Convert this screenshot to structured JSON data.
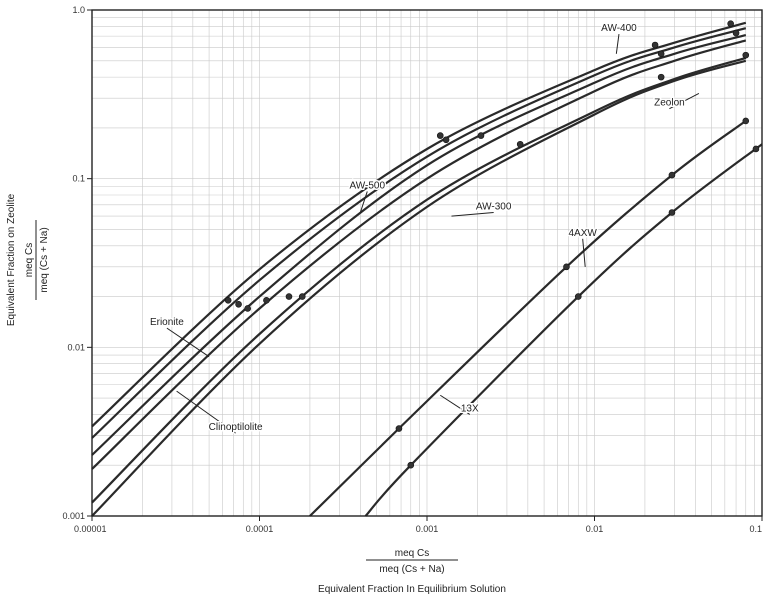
{
  "chart_data": {
    "type": "line",
    "x_scale": "log",
    "y_scale": "log",
    "xlim": [
      1e-05,
      0.1
    ],
    "ylim": [
      0.001,
      1.0
    ],
    "grid": true,
    "x_ticks": [
      "0.00001",
      "0.0001",
      "0.001",
      "0.01",
      "0.1"
    ],
    "y_ticks": [
      "0.001",
      "0.01",
      "0.1",
      "1.0"
    ],
    "xlabel": {
      "numerator": "meq Cs",
      "denominator": "meq (Cs + Na)",
      "caption": "Equivalent Fraction In Equilibrium Solution"
    },
    "ylabel": {
      "caption": "Equivalent Fraction on Zeolite",
      "numerator": "meq Cs",
      "denominator": "meq (Cs + Na)"
    },
    "series": [
      {
        "name": "AW-400",
        "x": [
          1e-05,
          0.0001,
          0.001,
          0.01,
          0.03,
          0.08
        ],
        "y": [
          0.0034,
          0.029,
          0.15,
          0.44,
          0.64,
          0.84
        ]
      },
      {
        "name": "AW-500",
        "x": [
          1e-05,
          0.0001,
          0.001,
          0.01,
          0.03,
          0.08
        ],
        "y": [
          0.0029,
          0.025,
          0.135,
          0.41,
          0.6,
          0.78
        ]
      },
      {
        "name": "Erionite",
        "x": [
          1e-05,
          0.0001,
          0.001,
          0.01,
          0.03,
          0.08
        ],
        "y": [
          0.0023,
          0.02,
          0.12,
          0.37,
          0.55,
          0.71
        ]
      },
      {
        "name": "Zeolon",
        "x": [
          1e-05,
          0.0001,
          0.001,
          0.01,
          0.03,
          0.08
        ],
        "y": [
          0.0019,
          0.017,
          0.1,
          0.33,
          0.5,
          0.66
        ]
      },
      {
        "name": "AW-300",
        "x": [
          1e-05,
          0.0001,
          0.001,
          0.01,
          0.03,
          0.08
        ],
        "y": [
          0.0012,
          0.012,
          0.075,
          0.25,
          0.39,
          0.52
        ]
      },
      {
        "name": "Clinoptilolite",
        "x": [
          1e-05,
          0.0001,
          0.001,
          0.01,
          0.03,
          0.08
        ],
        "y": [
          0.001,
          0.0105,
          0.068,
          0.24,
          0.38,
          0.5
        ]
      },
      {
        "name": "4AXW",
        "x": [
          0.0002,
          0.00068,
          0.0068,
          0.029,
          0.08
        ],
        "y": [
          0.001,
          0.0033,
          0.03,
          0.105,
          0.22
        ]
      },
      {
        "name": "13X",
        "x": [
          0.00043,
          0.0008,
          0.008,
          0.029,
          0.1
        ],
        "y": [
          0.001,
          0.002,
          0.02,
          0.063,
          0.16
        ]
      }
    ],
    "markers": [
      {
        "x": 6.5e-05,
        "y": 0.019
      },
      {
        "x": 7.5e-05,
        "y": 0.018
      },
      {
        "x": 8.5e-05,
        "y": 0.017
      },
      {
        "x": 0.00011,
        "y": 0.019
      },
      {
        "x": 0.00015,
        "y": 0.02
      },
      {
        "x": 0.00018,
        "y": 0.02
      },
      {
        "x": 0.0012,
        "y": 0.18
      },
      {
        "x": 0.0013,
        "y": 0.17
      },
      {
        "x": 0.0021,
        "y": 0.18
      },
      {
        "x": 0.0036,
        "y": 0.16
      },
      {
        "x": 0.023,
        "y": 0.62
      },
      {
        "x": 0.025,
        "y": 0.55
      },
      {
        "x": 0.025,
        "y": 0.4
      },
      {
        "x": 0.065,
        "y": 0.83
      },
      {
        "x": 0.07,
        "y": 0.73
      },
      {
        "x": 0.08,
        "y": 0.54
      },
      {
        "x": 0.00068,
        "y": 0.0033
      },
      {
        "x": 0.0068,
        "y": 0.03
      },
      {
        "x": 0.029,
        "y": 0.105
      },
      {
        "x": 0.08,
        "y": 0.22
      },
      {
        "x": 0.0008,
        "y": 0.002
      },
      {
        "x": 0.008,
        "y": 0.02
      },
      {
        "x": 0.029,
        "y": 0.063
      },
      {
        "x": 0.092,
        "y": 0.15
      }
    ],
    "annotations": [
      {
        "text": "AW-400",
        "x": 0.014,
        "y": 0.72,
        "tx": 0.0135,
        "ty": 0.55
      },
      {
        "text": "Zeolon",
        "x": 0.028,
        "y": 0.26,
        "tx": 0.042,
        "ty": 0.32
      },
      {
        "text": "AW-500",
        "x": 0.00044,
        "y": 0.084,
        "tx": 0.0004,
        "ty": 0.063
      },
      {
        "text": "AW-300",
        "x": 0.0025,
        "y": 0.063,
        "tx": 0.0014,
        "ty": 0.06
      },
      {
        "text": "Erionite",
        "x": 2.8e-05,
        "y": 0.013,
        "tx": 5e-05,
        "ty": 0.0088
      },
      {
        "text": "Clinoptilolite",
        "x": 7.2e-05,
        "y": 0.0031,
        "tx": 3.2e-05,
        "ty": 0.0055
      },
      {
        "text": "4AXW",
        "x": 0.0085,
        "y": 0.044,
        "tx": 0.0088,
        "ty": 0.03
      },
      {
        "text": "13X",
        "x": 0.0018,
        "y": 0.004,
        "tx": 0.0012,
        "ty": 0.0052
      }
    ]
  }
}
